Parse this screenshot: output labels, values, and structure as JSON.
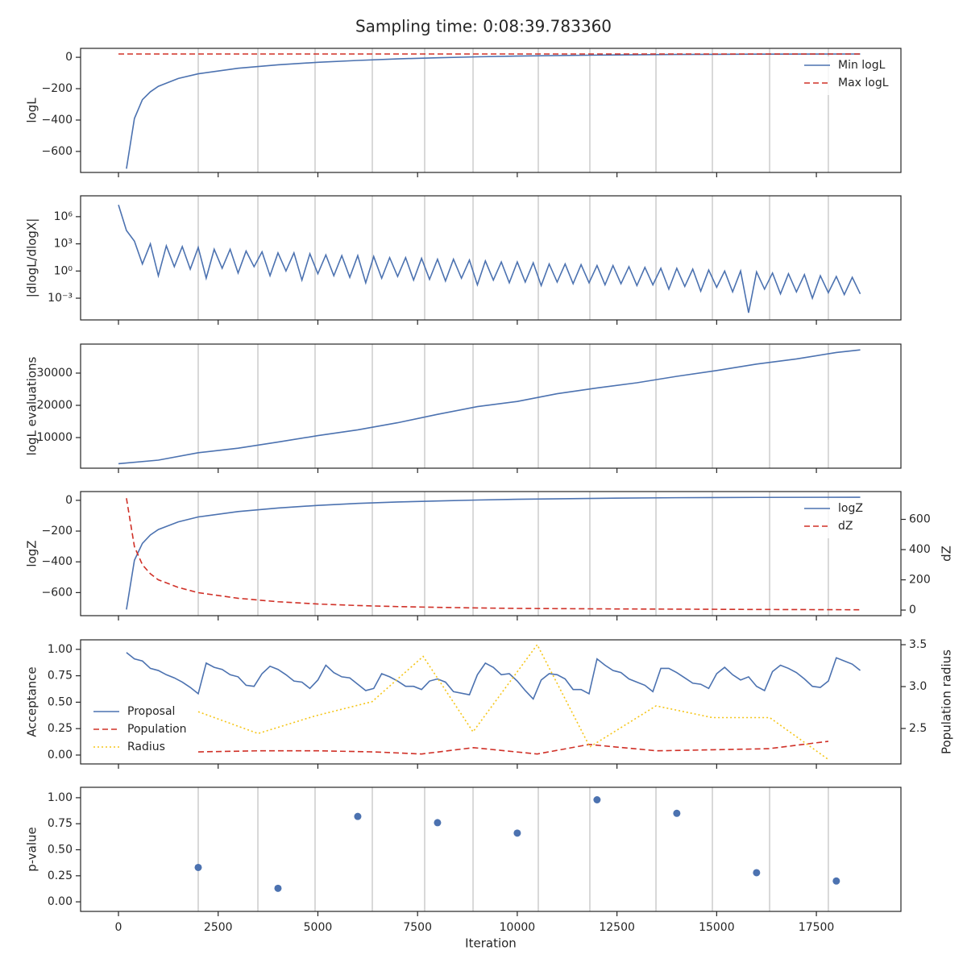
{
  "title": "Sampling time: 0:08:39.783360",
  "chart_data": [
    {
      "type": "line",
      "ylabel": "logL",
      "legend": "upper right",
      "xlim": [
        -950,
        19620
      ],
      "xticks": [
        0,
        2500,
        5000,
        7500,
        10000,
        12500,
        15000,
        17500
      ],
      "ylim": [
        -734,
        57
      ],
      "yticks": [
        {
          "value": -600,
          "label": "−600"
        },
        {
          "value": -400,
          "label": "−400"
        },
        {
          "value": -200,
          "label": "−200"
        },
        0
      ],
      "vlines": [
        2000,
        3496,
        4930,
        6365,
        7678,
        8891,
        10527,
        11820,
        13478,
        14892,
        16327,
        17800
      ],
      "series": [
        {
          "name": "Min logL",
          "color": "#4c72b0",
          "linestyle": "solid",
          "x": [
            200,
            400,
            600,
            800,
            1000,
            1500,
            2000,
            3000,
            4000,
            5000,
            6000,
            7000,
            8000,
            9000,
            10000,
            12000,
            14000,
            16000,
            18600
          ],
          "values": [
            -710,
            -390,
            -270,
            -220,
            -185,
            -135,
            -105,
            -70,
            -48,
            -32,
            -20,
            -10,
            -3,
            3,
            8,
            14,
            18,
            20,
            21
          ]
        },
        {
          "name": "Max logL",
          "color": "#d03027",
          "linestyle": "dashed",
          "x": [
            0,
            18600
          ],
          "values": [
            21,
            21
          ]
        }
      ]
    },
    {
      "type": "line",
      "ylabel": "|dlogL/dlogX|",
      "yscale": "log",
      "xlim": [
        -950,
        19620
      ],
      "xticks": [
        0,
        2500,
        5000,
        7500,
        10000,
        12500,
        15000,
        17500
      ],
      "ylim": [
        4e-06,
        200000000
      ],
      "yticks": [
        {
          "value": 0.001,
          "label": "10⁻³"
        },
        {
          "value": 1,
          "label": "10⁰"
        },
        {
          "value": 1000,
          "label": "10³"
        },
        {
          "value": 1000000,
          "label": "10⁶"
        }
      ],
      "vlines": [
        2000,
        3496,
        4930,
        6365,
        7678,
        8891,
        10527,
        11820,
        13478,
        14892,
        16327,
        17800
      ],
      "series": [
        {
          "color": "#4c72b0",
          "linestyle": "solid",
          "x": [
            0,
            200,
            400,
            600,
            800,
            1000,
            1200,
            1400,
            1600,
            1800,
            2000,
            2200,
            2400,
            2600,
            2800,
            3000,
            3200,
            3400,
            3600,
            3800,
            4000,
            4200,
            4400,
            4600,
            4800,
            5000,
            5200,
            5400,
            5600,
            5800,
            6000,
            6200,
            6400,
            6600,
            6800,
            7000,
            7200,
            7400,
            7600,
            7800,
            8000,
            8200,
            8400,
            8600,
            8800,
            9000,
            9200,
            9400,
            9600,
            9800,
            10000,
            10200,
            10400,
            10600,
            10800,
            11000,
            11200,
            11400,
            11600,
            11800,
            12000,
            12200,
            12400,
            12600,
            12800,
            13000,
            13200,
            13400,
            13600,
            13800,
            14000,
            14200,
            14400,
            14600,
            14800,
            15000,
            15200,
            15400,
            15600,
            15800,
            16000,
            16200,
            16400,
            16600,
            16800,
            17000,
            17200,
            17400,
            17600,
            17800,
            18000,
            18200,
            18400,
            18600
          ],
          "values": [
            20000000,
            30000,
            2000,
            6,
            1000,
            0.3,
            600,
            3,
            500,
            1.6,
            400,
            0.16,
            250,
            2,
            250,
            0.6,
            160,
            3,
            130,
            0.3,
            100,
            1,
            100,
            0.1,
            80,
            0.5,
            60,
            0.3,
            50,
            0.2,
            50,
            0.05,
            40,
            0.16,
            30,
            0.25,
            30,
            0.1,
            25,
            0.12,
            20,
            0.08,
            20,
            0.16,
            16,
            0.03,
            13,
            0.1,
            10,
            0.05,
            10,
            0.06,
            8,
            0.025,
            6,
            0.06,
            6,
            0.04,
            5,
            0.05,
            4,
            0.03,
            4,
            0.04,
            3,
            0.025,
            2.5,
            0.03,
            2,
            0.01,
            2,
            0.02,
            1.6,
            0.006,
            1.3,
            0.016,
            1,
            0.005,
            1,
            2.5e-05,
            0.8,
            0.01,
            0.6,
            0.003,
            0.5,
            0.005,
            0.4,
            0.001,
            0.3,
            0.004,
            0.25,
            0.0025,
            0.2,
            0.003
          ]
        }
      ]
    },
    {
      "type": "line",
      "ylabel": "logL evaluations",
      "xlim": [
        -950,
        19620
      ],
      "xticks": [
        0,
        2500,
        5000,
        7500,
        10000,
        12500,
        15000,
        17500
      ],
      "ylim": [
        500,
        39000
      ],
      "yticks": [
        10000,
        20000,
        30000
      ],
      "vlines": [
        2000,
        3496,
        4930,
        6365,
        7678,
        8891,
        10527,
        11820,
        13478,
        14892,
        16327,
        17800
      ],
      "series": [
        {
          "color": "#4c72b0",
          "linestyle": "solid",
          "x": [
            0,
            1000,
            2000,
            3000,
            4000,
            5000,
            6000,
            7000,
            8000,
            9000,
            10000,
            11000,
            12000,
            13000,
            14000,
            15000,
            16000,
            17000,
            18000,
            18600
          ],
          "values": [
            1900,
            3000,
            5300,
            6700,
            8600,
            10600,
            12400,
            14600,
            17200,
            19600,
            21200,
            23600,
            25400,
            27000,
            29000,
            30800,
            32800,
            34400,
            36400,
            37200
          ]
        }
      ]
    },
    {
      "type": "line",
      "ylabel": "logZ",
      "y2label": "dZ",
      "legend": "upper right",
      "xlim": [
        -950,
        19620
      ],
      "xticks": [
        0,
        2500,
        5000,
        7500,
        10000,
        12500,
        15000,
        17500
      ],
      "ylim": [
        -750,
        57
      ],
      "yticks": [
        {
          "value": -600,
          "label": "−600"
        },
        {
          "value": -400,
          "label": "−400"
        },
        {
          "value": -200,
          "label": "−200"
        },
        0
      ],
      "y2lim": [
        -37,
        784
      ],
      "y2ticks": [
        0,
        200,
        400,
        600
      ],
      "vlines": [
        2000,
        3496,
        4930,
        6365,
        7678,
        8891,
        10527,
        11820,
        13478,
        14892,
        16327,
        17800
      ],
      "series": [
        {
          "name": "logZ",
          "color": "#4c72b0",
          "linestyle": "solid",
          "x": [
            200,
            400,
            600,
            800,
            1000,
            1500,
            2000,
            3000,
            4000,
            5000,
            6000,
            7000,
            8000,
            9000,
            10000,
            12000,
            14000,
            16000,
            18600
          ],
          "values": [
            -710,
            -390,
            -280,
            -225,
            -190,
            -140,
            -108,
            -73,
            -50,
            -33,
            -20,
            -11,
            -4,
            2,
            7,
            13,
            17,
            19,
            20
          ]
        },
        {
          "name": "dZ",
          "color": "#d03027",
          "linestyle": "dashed",
          "axis": "y2",
          "x": [
            200,
            400,
            600,
            800,
            1000,
            1500,
            2000,
            3000,
            4000,
            5000,
            6000,
            7000,
            8000,
            9000,
            10000,
            12000,
            14000,
            16000,
            18600
          ],
          "values": [
            740,
            420,
            300,
            240,
            200,
            150,
            115,
            78,
            55,
            40,
            30,
            23,
            18,
            14,
            11,
            8,
            6,
            4,
            2
          ]
        }
      ]
    },
    {
      "type": "line",
      "ylabel": "Acceptance",
      "y2label": "Population radius",
      "legend": "lower left",
      "xlim": [
        -950,
        19620
      ],
      "xticks": [
        0,
        2500,
        5000,
        7500,
        10000,
        12500,
        15000,
        17500
      ],
      "ylim": [
        -0.084,
        1.09
      ],
      "yticks": [
        {
          "value": 0,
          "label": "0.00"
        },
        {
          "value": 0.25,
          "label": "0.25"
        },
        {
          "value": 0.5,
          "label": "0.50"
        },
        {
          "value": 0.75,
          "label": "0.75"
        },
        {
          "value": 1,
          "label": "1.00"
        }
      ],
      "y2lim": [
        2.077,
        3.558
      ],
      "y2ticks": [
        2.5,
        {
          "value": 3,
          "label": "3.0"
        },
        3.5
      ],
      "series": [
        {
          "name": "Proposal",
          "color": "#4c72b0",
          "linestyle": "solid",
          "x": [
            200,
            400,
            600,
            800,
            1000,
            1200,
            1400,
            1600,
            1800,
            2000,
            2200,
            2400,
            2600,
            2800,
            3000,
            3200,
            3400,
            3600,
            3800,
            4000,
            4200,
            4400,
            4600,
            4800,
            5000,
            5200,
            5400,
            5600,
            5800,
            6000,
            6200,
            6400,
            6600,
            6800,
            7000,
            7200,
            7400,
            7600,
            7800,
            8000,
            8200,
            8400,
            8800,
            9000,
            9200,
            9400,
            9600,
            9800,
            10000,
            10200,
            10400,
            10600,
            10800,
            11000,
            11200,
            11400,
            11600,
            11800,
            12000,
            12200,
            12400,
            12600,
            12800,
            13000,
            13200,
            13400,
            13600,
            13800,
            14000,
            14200,
            14400,
            14600,
            14800,
            15000,
            15200,
            15400,
            15600,
            15800,
            16000,
            16200,
            16400,
            16600,
            16800,
            17000,
            17200,
            17400,
            17600,
            17800,
            18000,
            18200,
            18400,
            18600
          ],
          "values": [
            0.97,
            0.91,
            0.89,
            0.82,
            0.8,
            0.76,
            0.73,
            0.69,
            0.64,
            0.58,
            0.87,
            0.83,
            0.81,
            0.76,
            0.74,
            0.66,
            0.65,
            0.77,
            0.84,
            0.81,
            0.76,
            0.7,
            0.69,
            0.63,
            0.71,
            0.85,
            0.78,
            0.74,
            0.73,
            0.67,
            0.61,
            0.63,
            0.77,
            0.74,
            0.7,
            0.65,
            0.65,
            0.62,
            0.7,
            0.72,
            0.69,
            0.6,
            0.57,
            0.76,
            0.87,
            0.83,
            0.76,
            0.77,
            0.7,
            0.61,
            0.53,
            0.71,
            0.77,
            0.76,
            0.72,
            0.62,
            0.62,
            0.58,
            0.91,
            0.85,
            0.8,
            0.78,
            0.72,
            0.69,
            0.66,
            0.6,
            0.82,
            0.82,
            0.78,
            0.73,
            0.68,
            0.67,
            0.63,
            0.77,
            0.83,
            0.76,
            0.71,
            0.74,
            0.65,
            0.61,
            0.79,
            0.85,
            0.82,
            0.78,
            0.72,
            0.65,
            0.64,
            0.7,
            0.92,
            0.89,
            0.86,
            0.8
          ]
        },
        {
          "name": "Population",
          "color": "#d03027",
          "linestyle": "dashed",
          "x": [
            2000,
            3500,
            5000,
            6400,
            7600,
            8900,
            10500,
            11800,
            13500,
            14900,
            16300,
            17800
          ],
          "values": [
            0.03,
            0.04,
            0.04,
            0.03,
            0.01,
            0.07,
            0.01,
            0.1,
            0.04,
            0.05,
            0.06,
            0.13
          ]
        },
        {
          "name": "Radius",
          "color": "#f5c518",
          "linestyle": "dotted",
          "axis": "y2",
          "x": [
            2000,
            3500,
            4930,
            6360,
            7640,
            8890,
            10500,
            11820,
            13480,
            14890,
            16330,
            17800
          ],
          "values": [
            2.7,
            2.44,
            2.65,
            2.82,
            3.36,
            2.46,
            3.5,
            2.28,
            2.77,
            2.63,
            2.63,
            2.13
          ]
        }
      ]
    },
    {
      "type": "scatter",
      "ylabel": "p-value",
      "xlabel": "Iteration",
      "xtick_labels": true,
      "xlim": [
        -950,
        19620
      ],
      "xticks": [
        0,
        2500,
        5000,
        7500,
        10000,
        12500,
        15000,
        17500
      ],
      "ylim": [
        -0.092,
        1.1
      ],
      "yticks": [
        {
          "value": 0,
          "label": "0.00"
        },
        {
          "value": 0.25,
          "label": "0.25"
        },
        {
          "value": 0.5,
          "label": "0.50"
        },
        {
          "value": 0.75,
          "label": "0.75"
        },
        {
          "value": 1,
          "label": "1.00"
        }
      ],
      "vlines": [
        2000,
        3496,
        4930,
        6365,
        7678,
        8891,
        10527,
        11820,
        13478,
        14892,
        16327,
        17800
      ],
      "series": [
        {
          "color": "#4c72b0",
          "x": [
            2000,
            4000,
            6000,
            8000,
            10000,
            12000,
            14000,
            16000,
            18000
          ],
          "values": [
            0.33,
            0.13,
            0.82,
            0.76,
            0.66,
            0.98,
            0.85,
            0.28,
            0.2
          ]
        }
      ]
    }
  ]
}
